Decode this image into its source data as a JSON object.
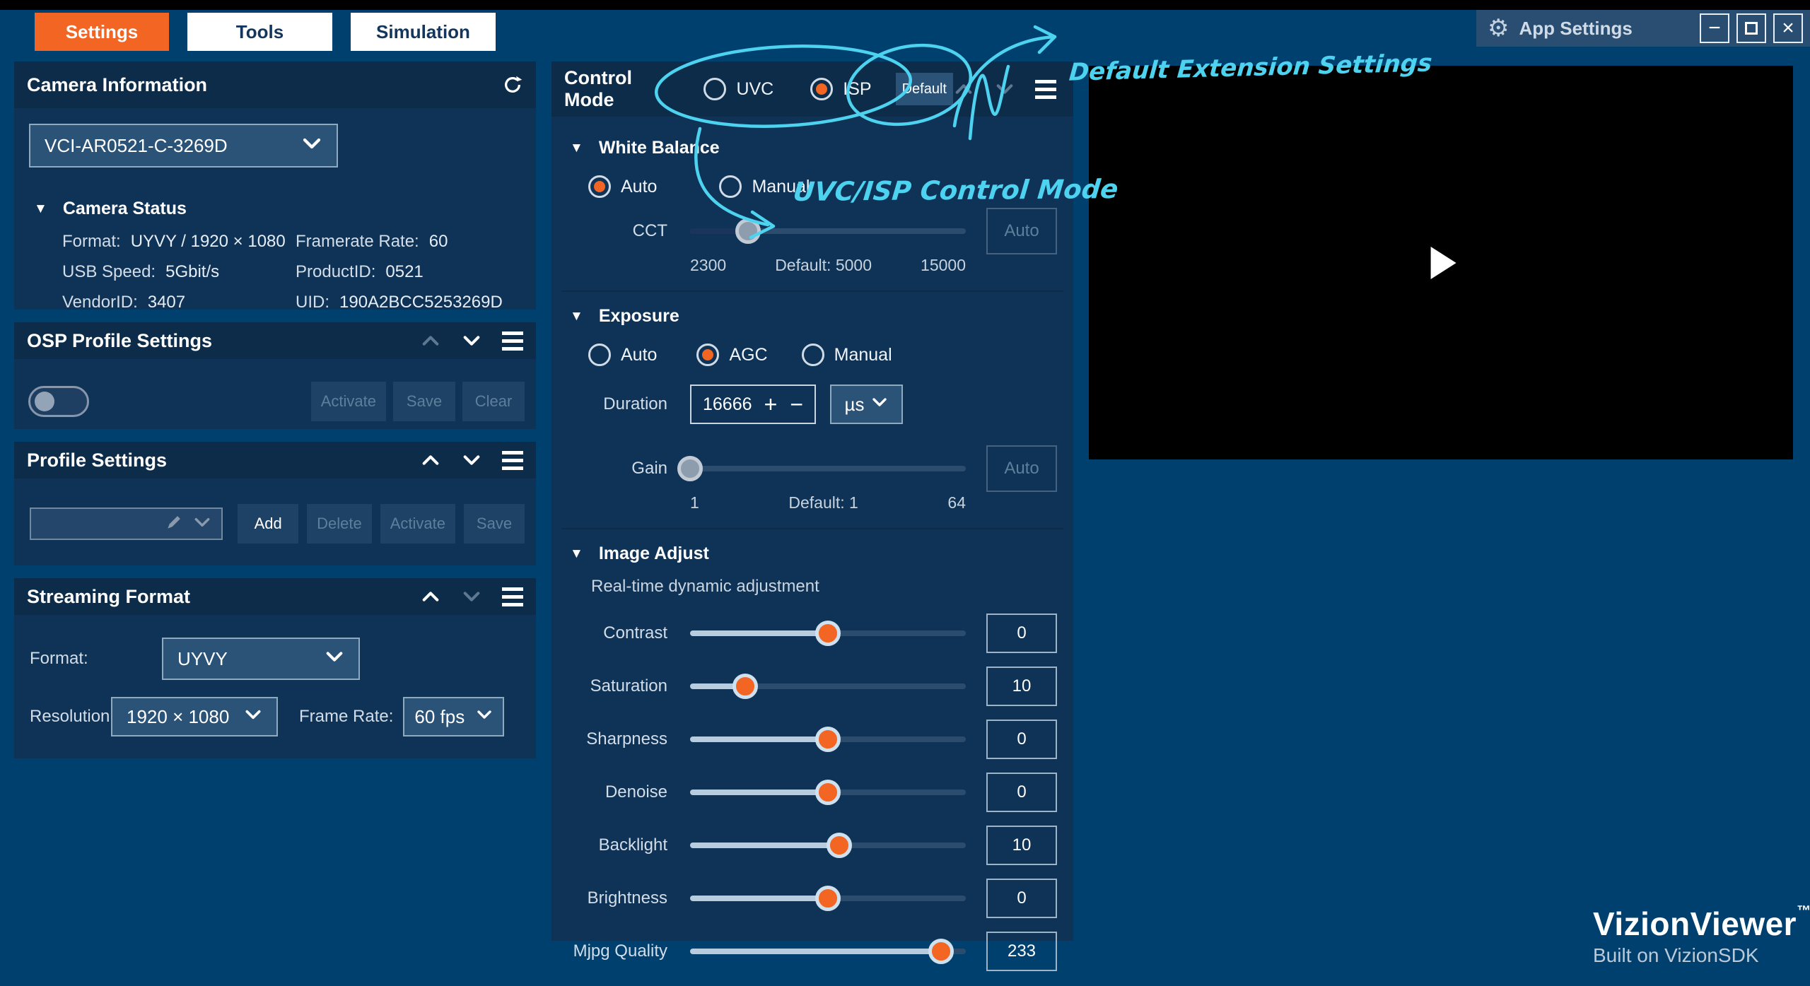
{
  "colors": {
    "accent": "#f26522",
    "annotation": "#4dd2f0",
    "page_bg": "#00406f",
    "panel_bg": "#0f3356"
  },
  "window": {
    "app_title": "App Settings",
    "minimize_glyph": "−",
    "close_glyph": "×"
  },
  "tabs": [
    {
      "label": "Settings"
    },
    {
      "label": "Tools"
    },
    {
      "label": "Simulation"
    }
  ],
  "camera_info": {
    "title": "Camera Information",
    "device_dropdown": "VCI-AR0521-C-3269D",
    "status_title": "Camera Status",
    "fields": [
      {
        "label": "Format:",
        "value": "UYVY / 1920 × 1080"
      },
      {
        "label": "Framerate Rate:",
        "value": "60"
      },
      {
        "label": "USB Speed:",
        "value": "5Gbit/s"
      },
      {
        "label": "ProductID:",
        "value": "0521"
      },
      {
        "label": "VendorID:",
        "value": "3407"
      },
      {
        "label": "UID:",
        "value": "190A2BCC5253269D"
      }
    ]
  },
  "osp_profile": {
    "title": "OSP Profile Settings",
    "toggle_on": false,
    "activate_label": "Activate",
    "save_label": "Save",
    "clear_label": "Clear"
  },
  "profile_settings": {
    "title": "Profile Settings",
    "dropdown_value": "",
    "add_label": "Add",
    "delete_label": "Delete",
    "activate_label": "Activate",
    "save_label": "Save"
  },
  "streaming_format": {
    "title": "Streaming Format",
    "format_label": "Format:",
    "format_value": "UYVY",
    "resolution_label": "Resolution:",
    "resolution_value": "1920 × 1080",
    "framerate_label": "Frame Rate:",
    "framerate_value": "60 fps"
  },
  "control_mode": {
    "title": "Control Mode",
    "uvc_label": "UVC",
    "isp_label": "ISP",
    "selected": "ISP",
    "default_label": "Default"
  },
  "white_balance": {
    "title": "White Balance",
    "auto_label": "Auto",
    "manual_label": "Manual",
    "selected": "Auto",
    "cct": {
      "label": "CCT",
      "min_label": "2300",
      "default_label": "Default: 5000",
      "max_label": "15000",
      "auto_label": "Auto",
      "pct": 21
    }
  },
  "exposure": {
    "title": "Exposure",
    "auto_label": "Auto",
    "agc_label": "AGC",
    "manual_label": "Manual",
    "selected": "AGC",
    "duration": {
      "label": "Duration",
      "value": "16666",
      "increment_glyph": "+",
      "decrement_glyph": "−",
      "unit": "µs"
    },
    "gain": {
      "label": "Gain",
      "min_label": "1",
      "default_label": "Default: 1",
      "max_label": "64",
      "auto_label": "Auto",
      "pct": 0
    }
  },
  "image_adjust": {
    "title": "Image Adjust",
    "subtitle": "Real-time dynamic adjustment",
    "sliders": [
      {
        "label": "Contrast",
        "value": "0",
        "pct": 50
      },
      {
        "label": "Saturation",
        "value": "10",
        "pct": 20
      },
      {
        "label": "Sharpness",
        "value": "0",
        "pct": 50
      },
      {
        "label": "Denoise",
        "value": "0",
        "pct": 50
      },
      {
        "label": "Backlight",
        "value": "10",
        "pct": 54
      },
      {
        "label": "Brightness",
        "value": "0",
        "pct": 50
      },
      {
        "label": "Mjpg Quality",
        "value": "233",
        "pct": 91
      }
    ]
  },
  "annotations": {
    "top_note": "Default Extension Settings",
    "mode_note": "UVC/ISP Control Mode"
  },
  "branding": {
    "name": "VizionViewer",
    "trademark": "™",
    "subtitle": "Built on VizionSDK"
  }
}
